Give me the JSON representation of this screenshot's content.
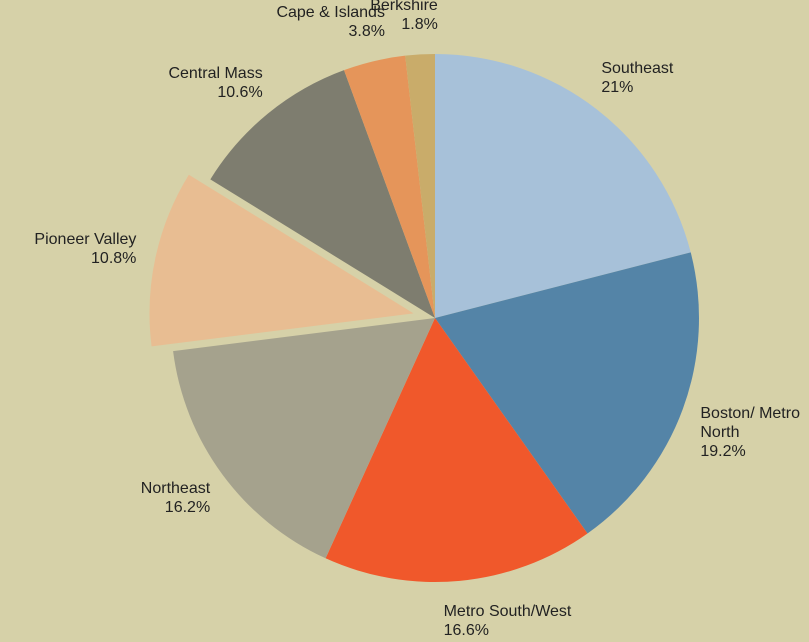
{
  "chart_data": {
    "type": "pie",
    "categories": [
      "Southeast",
      "Boston/ Metro North",
      "Metro South/West",
      "Northeast",
      "Pioneer Valley",
      "Central Mass",
      "Cape & Islands",
      "Berkshire"
    ],
    "values": [
      21,
      19.2,
      16.6,
      16.2,
      10.8,
      10.6,
      3.8,
      1.8
    ],
    "value_labels": [
      "21%",
      "19.2%",
      "16.6%",
      "16.2%",
      "10.8%",
      "10.6%",
      "3.8%",
      "1.8%"
    ],
    "colors": [
      "#a7c1d9",
      "#5484a7",
      "#f0582b",
      "#a5a28d",
      "#e8bd92",
      "#7e7d6f",
      "#e5955a",
      "#c9ac6a"
    ],
    "exploded": [
      false,
      false,
      false,
      false,
      true,
      false,
      false,
      false
    ]
  }
}
